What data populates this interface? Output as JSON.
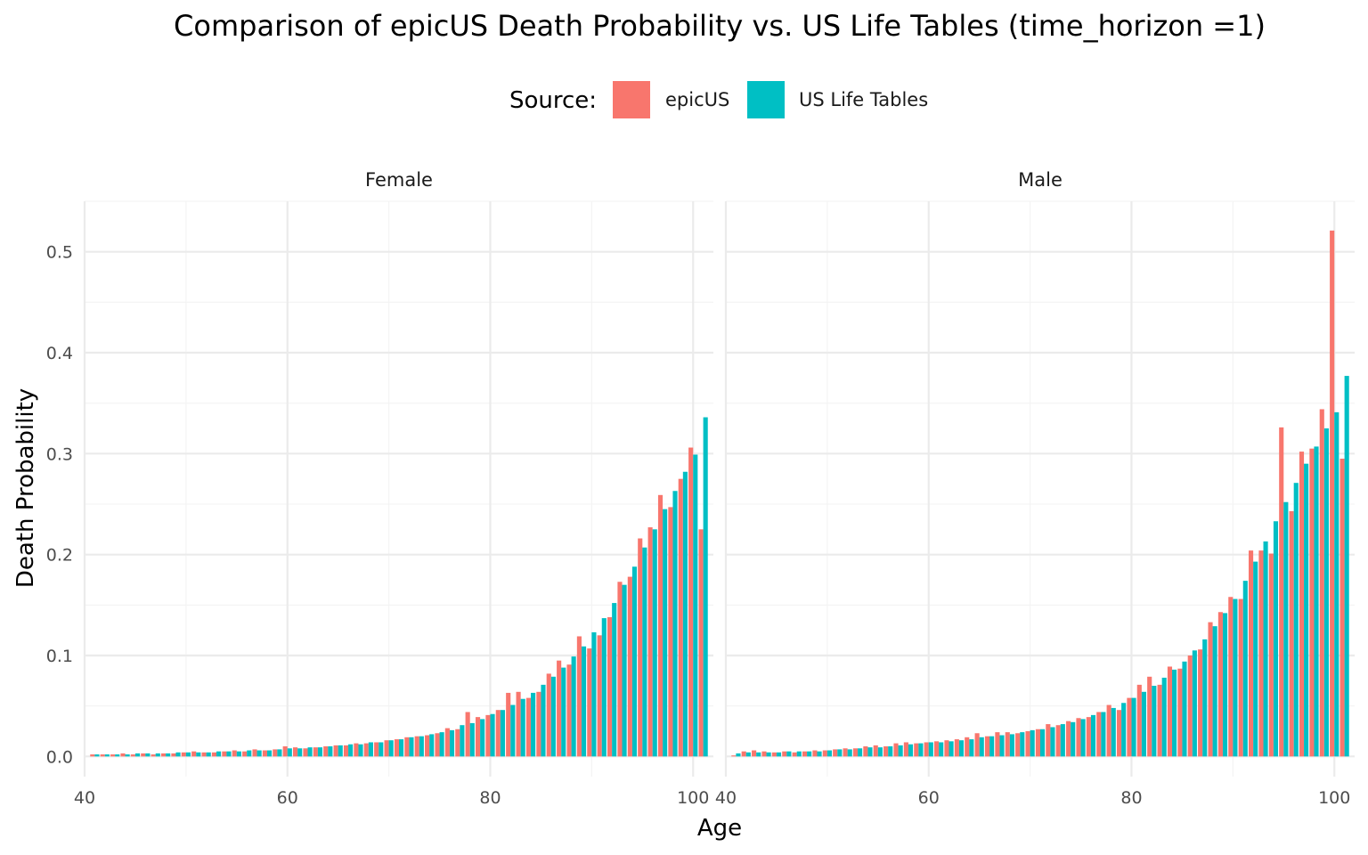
{
  "chart_data": {
    "type": "bar",
    "title": "Comparison of epicUS Death Probability vs. US Life Tables (time_horizon =1)",
    "xlabel": "Age",
    "ylabel": "Death Probability",
    "xlim": [
      40,
      102
    ],
    "ylim": [
      -0.02,
      0.55
    ],
    "x_ticks": [
      40,
      60,
      80,
      100
    ],
    "y_ticks": [
      0.0,
      0.1,
      0.2,
      0.3,
      0.4,
      0.5
    ],
    "y_tick_labels": [
      "0.0",
      "0.1",
      "0.2",
      "0.3",
      "0.4",
      "0.5"
    ],
    "grid": true,
    "legend": {
      "title": "Source:",
      "position": "top",
      "entries": [
        {
          "name": "epicUS",
          "color": "#F8766D"
        },
        {
          "name": "US Life Tables",
          "color": "#00BFC4"
        }
      ]
    },
    "ages": [
      41,
      42,
      43,
      44,
      45,
      46,
      47,
      48,
      49,
      50,
      51,
      52,
      53,
      54,
      55,
      56,
      57,
      58,
      59,
      60,
      61,
      62,
      63,
      64,
      65,
      66,
      67,
      68,
      69,
      70,
      71,
      72,
      73,
      74,
      75,
      76,
      77,
      78,
      79,
      80,
      81,
      82,
      83,
      84,
      85,
      86,
      87,
      88,
      89,
      90,
      91,
      92,
      93,
      94,
      95,
      96,
      97,
      98,
      99,
      100,
      101
    ],
    "facets": [
      {
        "label": "Female",
        "series": [
          {
            "name": "epicUS",
            "values": [
              0.002,
              0.002,
              0.002,
              0.003,
              0.002,
              0.003,
              0.002,
              0.003,
              0.003,
              0.004,
              0.005,
              0.004,
              0.004,
              0.005,
              0.006,
              0.005,
              0.007,
              0.006,
              0.007,
              0.01,
              0.009,
              0.008,
              0.009,
              0.01,
              0.011,
              0.011,
              0.013,
              0.013,
              0.014,
              0.016,
              0.017,
              0.019,
              0.02,
              0.021,
              0.023,
              0.028,
              0.027,
              0.044,
              0.039,
              0.041,
              0.046,
              0.063,
              0.064,
              0.058,
              0.064,
              0.082,
              0.095,
              0.091,
              0.119,
              0.107,
              0.12,
              0.138,
              0.173,
              0.178,
              0.216,
              0.227,
              0.259,
              0.247,
              0.275,
              0.306,
              0.225
            ]
          },
          {
            "name": "US Life Tables",
            "values": [
              0.002,
              0.002,
              0.002,
              0.002,
              0.003,
              0.003,
              0.003,
              0.003,
              0.004,
              0.004,
              0.004,
              0.004,
              0.005,
              0.005,
              0.005,
              0.006,
              0.006,
              0.006,
              0.007,
              0.008,
              0.008,
              0.009,
              0.009,
              0.01,
              0.011,
              0.012,
              0.012,
              0.014,
              0.014,
              0.016,
              0.017,
              0.019,
              0.02,
              0.022,
              0.024,
              0.026,
              0.031,
              0.033,
              0.037,
              0.042,
              0.046,
              0.051,
              0.057,
              0.063,
              0.071,
              0.079,
              0.088,
              0.099,
              0.109,
              0.123,
              0.137,
              0.152,
              0.17,
              0.188,
              0.207,
              0.225,
              0.245,
              0.263,
              0.282,
              0.299,
              0.336
            ]
          }
        ]
      },
      {
        "label": "Male",
        "series": [
          {
            "name": "epicUS",
            "values": [
              0.001,
              0.005,
              0.006,
              0.005,
              0.004,
              0.005,
              0.004,
              0.005,
              0.006,
              0.006,
              0.007,
              0.008,
              0.008,
              0.01,
              0.011,
              0.01,
              0.013,
              0.014,
              0.013,
              0.014,
              0.015,
              0.016,
              0.017,
              0.019,
              0.023,
              0.02,
              0.024,
              0.024,
              0.023,
              0.025,
              0.027,
              0.032,
              0.031,
              0.035,
              0.038,
              0.039,
              0.044,
              0.051,
              0.046,
              0.058,
              0.071,
              0.079,
              0.071,
              0.089,
              0.087,
              0.1,
              0.106,
              0.133,
              0.143,
              0.158,
              0.156,
              0.204,
              0.204,
              0.201,
              0.326,
              0.243,
              0.302,
              0.305,
              0.344,
              0.521,
              0.295
            ]
          },
          {
            "name": "US Life Tables",
            "values": [
              0.003,
              0.004,
              0.004,
              0.004,
              0.004,
              0.005,
              0.005,
              0.005,
              0.005,
              0.006,
              0.007,
              0.007,
              0.008,
              0.009,
              0.009,
              0.01,
              0.011,
              0.012,
              0.013,
              0.014,
              0.014,
              0.015,
              0.016,
              0.017,
              0.019,
              0.02,
              0.021,
              0.022,
              0.024,
              0.026,
              0.027,
              0.029,
              0.032,
              0.034,
              0.037,
              0.041,
              0.044,
              0.048,
              0.053,
              0.058,
              0.064,
              0.07,
              0.078,
              0.086,
              0.094,
              0.105,
              0.116,
              0.129,
              0.142,
              0.156,
              0.174,
              0.193,
              0.213,
              0.233,
              0.252,
              0.271,
              0.29,
              0.307,
              0.325,
              0.341,
              0.377
            ]
          }
        ]
      }
    ]
  }
}
